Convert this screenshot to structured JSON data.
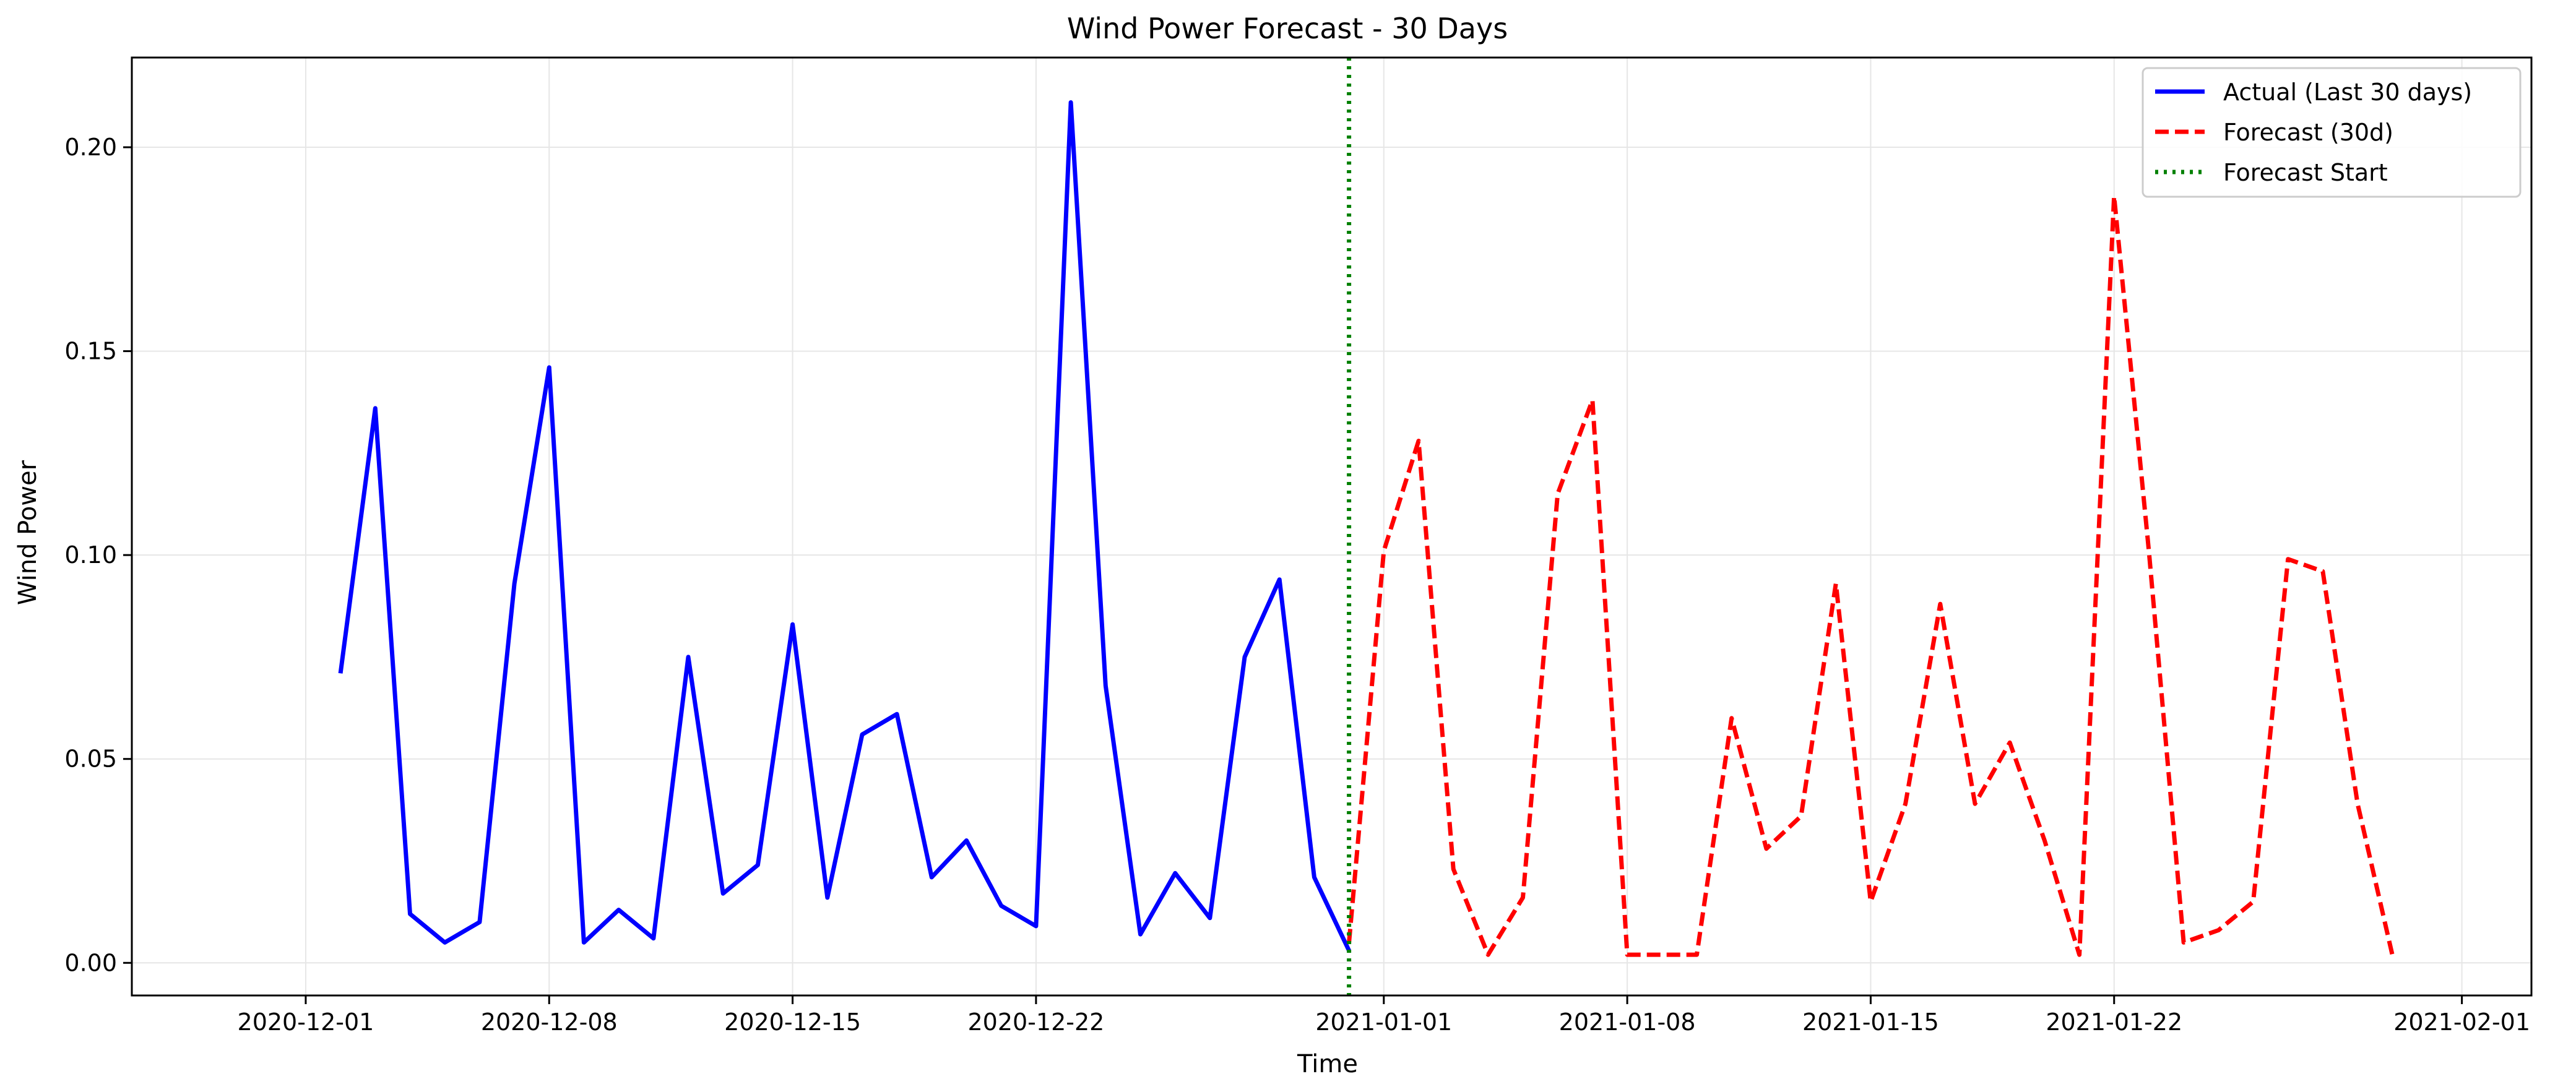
{
  "chart_data": {
    "type": "line",
    "title": "Wind Power Forecast - 30 Days",
    "xlabel": "Time",
    "ylabel": "Wind Power",
    "xlim": [
      "2020-11-26",
      "2021-02-03"
    ],
    "ylim": [
      -0.008,
      0.222
    ],
    "grid": true,
    "legend_position": "top-right",
    "x_ticks": [
      "2020-12-01",
      "2020-12-08",
      "2020-12-15",
      "2020-12-22",
      "2021-01-01",
      "2021-01-08",
      "2021-01-15",
      "2021-01-22",
      "2021-02-01"
    ],
    "y_ticks": [
      "0.00",
      "0.05",
      "0.10",
      "0.15",
      "0.20"
    ],
    "series": [
      {
        "name": "Actual (Last 30 days)",
        "color": "#0000ff",
        "style": "solid",
        "x": [
          "2020-12-02",
          "2020-12-03",
          "2020-12-04",
          "2020-12-05",
          "2020-12-06",
          "2020-12-07",
          "2020-12-08",
          "2020-12-09",
          "2020-12-10",
          "2020-12-11",
          "2020-12-12",
          "2020-12-13",
          "2020-12-14",
          "2020-12-15",
          "2020-12-16",
          "2020-12-17",
          "2020-12-18",
          "2020-12-19",
          "2020-12-20",
          "2020-12-21",
          "2020-12-22",
          "2020-12-23",
          "2020-12-24",
          "2020-12-25",
          "2020-12-26",
          "2020-12-27",
          "2020-12-28",
          "2020-12-29",
          "2020-12-30",
          "2020-12-31"
        ],
        "values": [
          0.071,
          0.136,
          0.012,
          0.005,
          0.01,
          0.093,
          0.146,
          0.005,
          0.013,
          0.006,
          0.075,
          0.017,
          0.024,
          0.083,
          0.016,
          0.056,
          0.061,
          0.021,
          0.03,
          0.014,
          0.009,
          0.211,
          0.068,
          0.007,
          0.022,
          0.011,
          0.075,
          0.094,
          0.021,
          0.003
        ]
      },
      {
        "name": "Forecast (30d)",
        "color": "#ff0000",
        "style": "dashed",
        "x": [
          "2020-12-31",
          "2021-01-01",
          "2021-01-02",
          "2021-01-03",
          "2021-01-04",
          "2021-01-05",
          "2021-01-06",
          "2021-01-07",
          "2021-01-08",
          "2021-01-09",
          "2021-01-10",
          "2021-01-11",
          "2021-01-12",
          "2021-01-13",
          "2021-01-14",
          "2021-01-15",
          "2021-01-16",
          "2021-01-17",
          "2021-01-18",
          "2021-01-19",
          "2021-01-20",
          "2021-01-21",
          "2021-01-22",
          "2021-01-23",
          "2021-01-24",
          "2021-01-25",
          "2021-01-26",
          "2021-01-27",
          "2021-01-28",
          "2021-01-29",
          "2021-01-30"
        ],
        "values": [
          0.005,
          0.101,
          0.128,
          0.023,
          0.002,
          0.016,
          0.115,
          0.138,
          0.002,
          0.002,
          0.002,
          0.06,
          0.028,
          0.036,
          0.093,
          0.015,
          0.039,
          0.088,
          0.039,
          0.054,
          0.03,
          0.002,
          0.188,
          0.101,
          0.005,
          0.008,
          0.015,
          0.099,
          0.096,
          0.039,
          0.002
        ]
      }
    ],
    "vlines": [
      {
        "name": "Forecast Start",
        "x": "2020-12-31",
        "color": "#008000",
        "style": "dotted"
      }
    ]
  }
}
